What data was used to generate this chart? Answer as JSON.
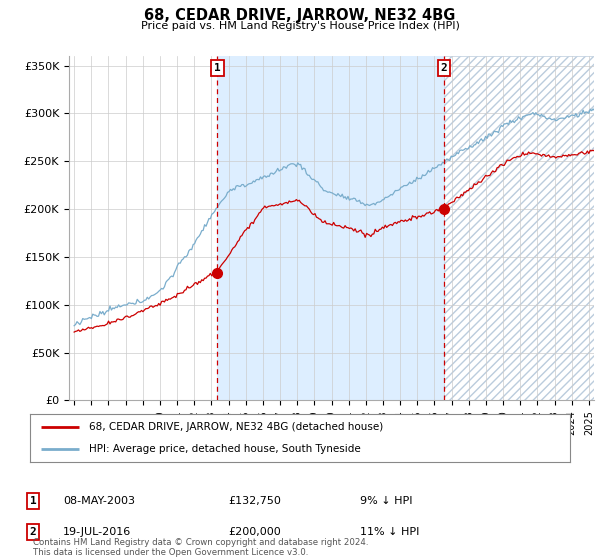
{
  "title": "68, CEDAR DRIVE, JARROW, NE32 4BG",
  "subtitle": "Price paid vs. HM Land Registry's House Price Index (HPI)",
  "ylim": [
    0,
    360000
  ],
  "yticks": [
    0,
    50000,
    100000,
    150000,
    200000,
    250000,
    300000,
    350000
  ],
  "ytick_labels": [
    "£0",
    "£50K",
    "£100K",
    "£150K",
    "£200K",
    "£250K",
    "£300K",
    "£350K"
  ],
  "xlim_left": 1994.7,
  "xlim_right": 2025.3,
  "sale1_date_num": 2003.35,
  "sale1_price": 132750,
  "sale1_label": "1",
  "sale2_date_num": 2016.54,
  "sale2_price": 200000,
  "sale2_label": "2",
  "red_line_label": "68, CEDAR DRIVE, JARROW, NE32 4BG (detached house)",
  "blue_line_label": "HPI: Average price, detached house, South Tyneside",
  "table_row1": [
    "1",
    "08-MAY-2003",
    "£132,750",
    "9% ↓ HPI"
  ],
  "table_row2": [
    "2",
    "19-JUL-2016",
    "£200,000",
    "11% ↓ HPI"
  ],
  "footer": "Contains HM Land Registry data © Crown copyright and database right 2024.\nThis data is licensed under the Open Government Licence v3.0.",
  "red_color": "#cc0000",
  "blue_color": "#7aadcc",
  "shade_color": "#ddeeff",
  "background_color": "#ffffff",
  "grid_color": "#cccccc"
}
